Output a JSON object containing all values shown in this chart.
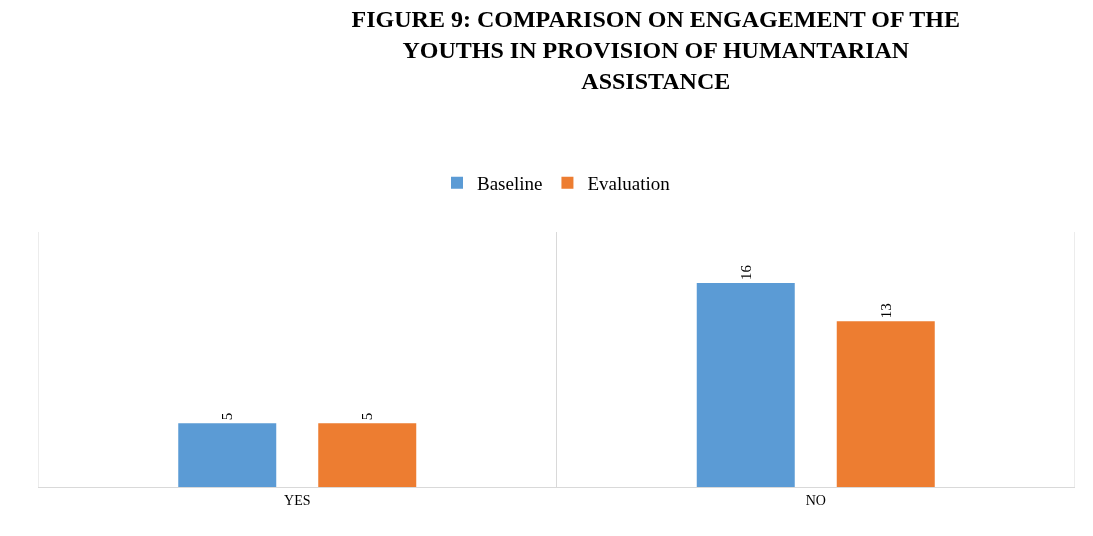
{
  "chart_data": {
    "type": "bar",
    "title": "FIGURE 9: COMPARISON ON ENGAGEMENT OF THE YOUTHS IN PROVISION OF HUMANTARIAN ASSISTANCE",
    "categories": [
      "YES",
      "NO"
    ],
    "series": [
      {
        "name": "Baseline",
        "color": "#5b9bd5",
        "values": [
          5,
          16
        ]
      },
      {
        "name": "Evaluation",
        "color": "#ed7d31",
        "values": [
          5,
          13
        ]
      }
    ],
    "ylim": [
      0,
      20
    ],
    "data_labels": true,
    "grid": false,
    "legend": "top",
    "tick_labels": "x"
  }
}
